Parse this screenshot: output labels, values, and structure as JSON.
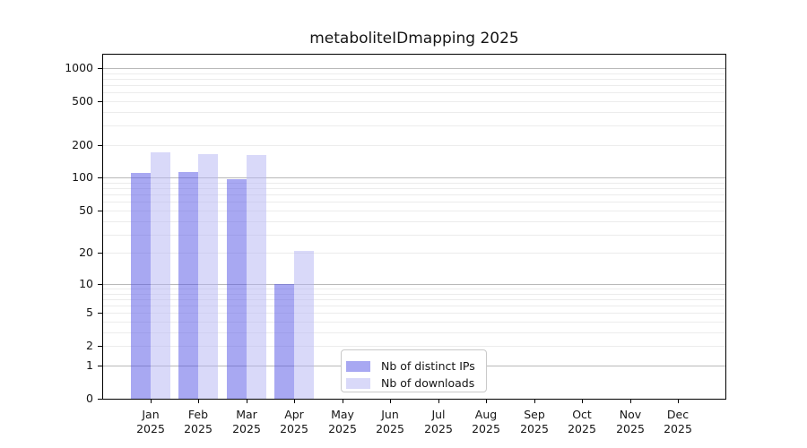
{
  "chart_data": {
    "type": "bar",
    "title": "metaboliteIDmapping 2025",
    "year_label": "2025",
    "months": [
      "Jan",
      "Feb",
      "Mar",
      "Apr",
      "May",
      "Jun",
      "Jul",
      "Aug",
      "Sep",
      "Oct",
      "Nov",
      "Dec"
    ],
    "series": [
      {
        "name": "Nb of distinct IPs",
        "color_hex": "#a8a8f2",
        "fill": "rgba(81,81,229,0.5)",
        "values": [
          112,
          114,
          97,
          10,
          0,
          0,
          0,
          0,
          0,
          0,
          0,
          0
        ]
      },
      {
        "name": "Nb of downloads",
        "color_hex": "#d9d9f9",
        "fill": "rgba(179,179,243,0.5)",
        "values": [
          172,
          165,
          162,
          21,
          0,
          0,
          0,
          0,
          0,
          0,
          0,
          0
        ]
      }
    ],
    "y_axis": {
      "ticks": [
        0,
        1,
        2,
        5,
        10,
        20,
        50,
        100,
        200,
        500,
        1000
      ],
      "scale": "log10(1+y)",
      "top_value": 1360
    },
    "x_axis": {
      "tick_label_format": "month over year"
    },
    "legend": {
      "position": "lower-center inside plot"
    },
    "grid": {
      "major_color": "#b9b9b9",
      "minor_color": "#ececec",
      "major_at": [
        1,
        10,
        100,
        1000
      ]
    },
    "axis_color": "#000000",
    "background": "#ffffff"
  }
}
